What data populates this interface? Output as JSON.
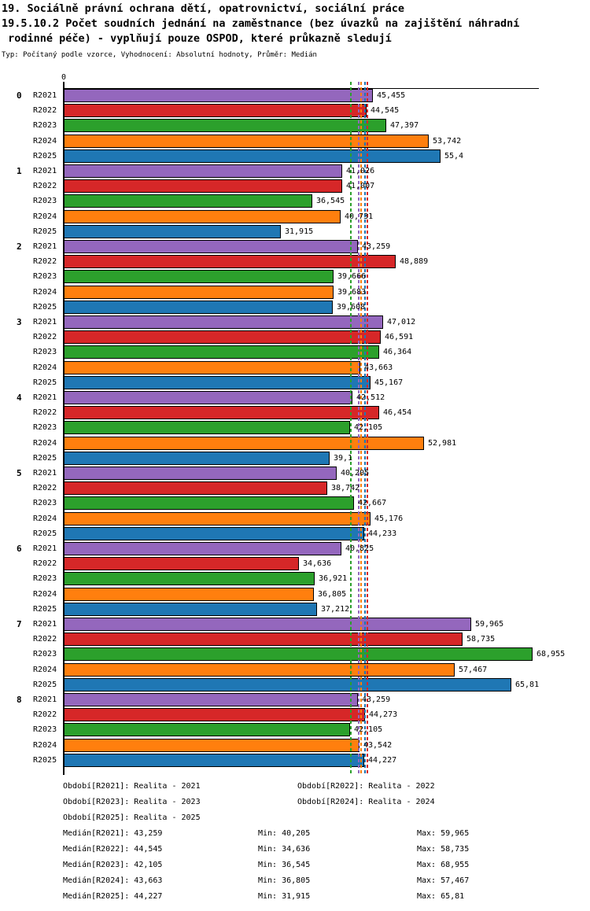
{
  "title": {
    "line1": "19. Sociálně právní ochrana dětí, opatrovnictví, sociální práce",
    "line2": "19.5.10.2 Počet soudních jednání na zaměstnance (bez úvazků na zajištění náhradní",
    "line3": " rodinné péče) - vyplňují pouze OSPOD, které průkazně sledují",
    "subtitle": "Typ: Počítaný podle vzorce, Vyhodnocení: Absolutní hodnoty, Průměr: Medián"
  },
  "chart_data": {
    "type": "bar",
    "orientation": "horizontal",
    "x_axis": {
      "origin_label": "0",
      "min": 0,
      "max": 69,
      "grid": false
    },
    "categories": [
      "0",
      "1",
      "2",
      "3",
      "4",
      "5",
      "6",
      "7",
      "8"
    ],
    "series": [
      {
        "name": "R2021",
        "color": "#9467bd",
        "values": [
          45.455,
          41.026,
          43.259,
          47.012,
          42.512,
          40.205,
          40.825,
          59.965,
          43.259
        ],
        "labels": [
          "45,455",
          "41,026",
          "43,259",
          "47,012",
          "42,512",
          "40,205",
          "40,825",
          "59,965",
          "43,259"
        ]
      },
      {
        "name": "R2022",
        "color": "#d62728",
        "values": [
          44.545,
          41.007,
          48.889,
          46.591,
          46.454,
          38.742,
          34.636,
          58.735,
          44.273
        ],
        "labels": [
          "44,545",
          "41,007",
          "48,889",
          "46,591",
          "46,454",
          "38,742",
          "34,636",
          "58,735",
          "44,273"
        ]
      },
      {
        "name": "R2023",
        "color": "#2ca02c",
        "values": [
          47.397,
          36.545,
          39.666,
          46.364,
          42.105,
          42.667,
          36.921,
          68.955,
          42.105
        ],
        "labels": [
          "47,397",
          "36,545",
          "39,666",
          "46,364",
          "42,105",
          "42,667",
          "36,921",
          "68,955",
          "42,105"
        ]
      },
      {
        "name": "R2024",
        "color": "#ff7f0e",
        "values": [
          53.742,
          40.731,
          39.683,
          43.663,
          52.981,
          45.176,
          36.805,
          57.467,
          43.542
        ],
        "labels": [
          "53,742",
          "40,731",
          "39,683",
          "43,663",
          "52,981",
          "45,176",
          "36,805",
          "57,467",
          "43,542"
        ]
      },
      {
        "name": "R2025",
        "color": "#1f77b4",
        "values": [
          55.4,
          31.915,
          39.608,
          45.167,
          39.1,
          44.233,
          37.212,
          65.81,
          44.227
        ],
        "labels": [
          "55,4",
          "31,915",
          "39,608",
          "45,167",
          "39,1",
          "44,233",
          "37,212",
          "65,81",
          "44,227"
        ]
      }
    ],
    "medians": [
      {
        "name": "R2021",
        "value": 43.259,
        "label": "43,259",
        "color": "#9467bd"
      },
      {
        "name": "R2022",
        "value": 44.545,
        "label": "44,545",
        "color": "#d62728"
      },
      {
        "name": "R2023",
        "value": 42.105,
        "label": "42,105",
        "color": "#2ca02c"
      },
      {
        "name": "R2024",
        "value": 43.663,
        "label": "43,663",
        "color": "#ff7f0e"
      },
      {
        "name": "R2025",
        "value": 44.227,
        "label": "44,227",
        "color": "#1f77b4"
      }
    ]
  },
  "legend": {
    "items": [
      "Období[R2021]: Realita - 2021",
      "Období[R2022]: Realita - 2022",
      "Období[R2023]: Realita - 2023",
      "Období[R2024]: Realita - 2024",
      "Období[R2025]: Realita - 2025"
    ]
  },
  "stats": {
    "rows": [
      {
        "median": "Medián[R2021]: 43,259",
        "min": "Min: 40,205",
        "max": "Max: 59,965"
      },
      {
        "median": "Medián[R2022]: 44,545",
        "min": "Min: 34,636",
        "max": "Max: 58,735"
      },
      {
        "median": "Medián[R2023]: 42,105",
        "min": "Min: 36,545",
        "max": "Max: 68,955"
      },
      {
        "median": "Medián[R2024]: 43,663",
        "min": "Min: 36,805",
        "max": "Max: 57,467"
      },
      {
        "median": "Medián[R2025]: 44,227",
        "min": "Min: 31,915",
        "max": "Max: 65,81"
      }
    ]
  }
}
